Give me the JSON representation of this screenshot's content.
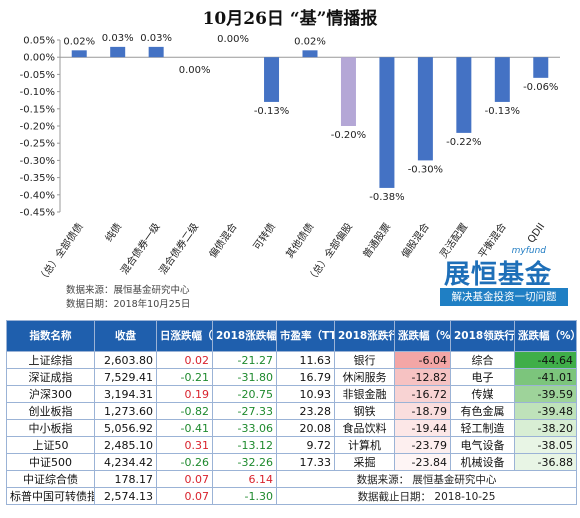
{
  "title": "10月26日 “基”情播报",
  "chart_data": {
    "type": "bar",
    "categories": [
      "（总）全部债债",
      "纯债",
      "混合债券一级",
      "混合债券二级",
      "偏债混合",
      "可转债",
      "其他债债",
      "（总）全部偏股",
      "普通股票",
      "偏股混合",
      "灵活配置",
      "平衡混合",
      "QDII"
    ],
    "values": [
      0.02,
      0.03,
      0.03,
      0.0,
      0.0,
      -0.13,
      0.02,
      -0.2,
      -0.38,
      -0.3,
      -0.22,
      -0.13,
      -0.06
    ],
    "value_labels": [
      "0.02%",
      "0.03%",
      "0.03%",
      "0.00%",
      "0.00%",
      "-0.13%",
      "0.02%",
      "-0.20%",
      "-0.38%",
      "-0.30%",
      "-0.22%",
      "-0.13%",
      "-0.06%"
    ],
    "highlight_index": 7,
    "ylim": [
      -0.45,
      0.05
    ],
    "yticks": [
      "0.05%",
      "0.00%",
      "-0.05%",
      "-0.10%",
      "-0.15%",
      "-0.20%",
      "-0.25%",
      "-0.30%",
      "-0.35%",
      "-0.40%",
      "-0.45%"
    ],
    "colors": {
      "normal": "#4472c4",
      "highlight": "#b4a7d6"
    },
    "grid": false
  },
  "source": {
    "line1": "数据来源：展恒基金研究中心",
    "line2": "数据日期：2018年10月25日"
  },
  "logo": {
    "small": "myfund",
    "big": "展恒基金",
    "slogan": "解决基金投资一切问题"
  },
  "table": {
    "headers": [
      "指数名称",
      "收盘",
      "日涨跌幅（%）",
      "2018涨跌幅（%）",
      "市盈率（TTM）",
      "2018涨跌行业",
      "涨跌幅（%）",
      "2018领跌行业",
      "涨跌幅（%）"
    ],
    "rows": [
      [
        "上证综指",
        "2,603.80",
        "0.02",
        "-21.27",
        "11.63",
        "银行",
        "-6.04",
        "综合",
        "-44.64"
      ],
      [
        "深证成指",
        "7,529.41",
        "-0.21",
        "-31.80",
        "16.79",
        "休闲服务",
        "-12.82",
        "电子",
        "-41.01"
      ],
      [
        "沪深300",
        "3,194.31",
        "0.19",
        "-20.75",
        "10.93",
        "非银金融",
        "-16.72",
        "传媒",
        "-39.59"
      ],
      [
        "创业板指",
        "1,273.60",
        "-0.82",
        "-27.33",
        "23.28",
        "钢铁",
        "-18.79",
        "有色金属",
        "-39.48"
      ],
      [
        "中小板指",
        "5,056.92",
        "-0.41",
        "-33.06",
        "20.08",
        "食品饮料",
        "-19.44",
        "轻工制造",
        "-38.20"
      ],
      [
        "上证50",
        "2,485.10",
        "0.31",
        "-13.12",
        "9.72",
        "计算机",
        "-23.79",
        "电气设备",
        "-38.05"
      ],
      [
        "中证500",
        "4,234.42",
        "-0.26",
        "-32.26",
        "17.33",
        "采掘",
        "-23.84",
        "机械设备",
        "-36.88"
      ]
    ],
    "extra_rows": [
      [
        "中证综合债",
        "178.17",
        "0.07",
        "6.14"
      ],
      [
        "标普中国可转债指数",
        "2,574.13",
        "0.07",
        "-1.30"
      ]
    ],
    "footnote1": "数据来源：      展恒基金研究中心",
    "footnote2": "数据截止日期：   2018-10-25"
  }
}
